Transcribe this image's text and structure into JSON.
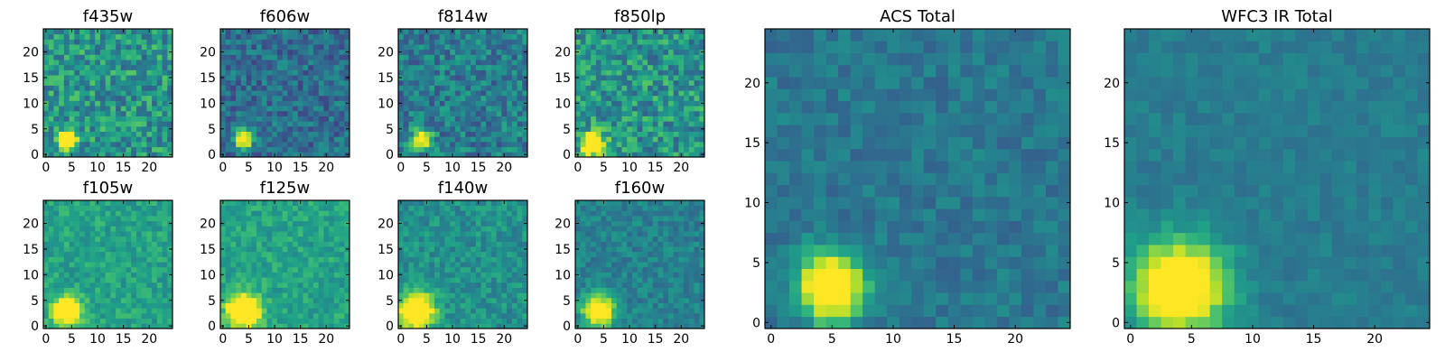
{
  "chart_data": [
    {
      "id": "f435w",
      "type": "heatmap",
      "title": "f435w",
      "xticks": [
        "0",
        "5",
        "10",
        "15",
        "20"
      ],
      "yticks": [
        "0",
        "5",
        "10",
        "15",
        "20"
      ],
      "xlim": [
        -0.5,
        24.5
      ],
      "ylim": [
        -0.5,
        24.5
      ],
      "grid": false,
      "colormap": "viridis",
      "source_peak": [
        4,
        3
      ],
      "source_sigma": 1.2,
      "noise": 0.42,
      "base": 0.52
    },
    {
      "id": "f606w",
      "type": "heatmap",
      "title": "f606w",
      "xticks": [
        "0",
        "5",
        "10",
        "15",
        "20"
      ],
      "yticks": [
        "0",
        "5",
        "10",
        "15",
        "20"
      ],
      "xlim": [
        -0.5,
        24.5
      ],
      "ylim": [
        -0.5,
        24.5
      ],
      "grid": false,
      "colormap": "viridis",
      "source_peak": [
        4,
        3
      ],
      "source_sigma": 1.2,
      "noise": 0.32,
      "base": 0.36
    },
    {
      "id": "f814w",
      "type": "heatmap",
      "title": "f814w",
      "xticks": [
        "0",
        "5",
        "10",
        "15",
        "20"
      ],
      "yticks": [
        "0",
        "5",
        "10",
        "15",
        "20"
      ],
      "xlim": [
        -0.5,
        24.5
      ],
      "ylim": [
        -0.5,
        24.5
      ],
      "grid": false,
      "colormap": "viridis",
      "source_peak": [
        4,
        3
      ],
      "source_sigma": 1.2,
      "noise": 0.36,
      "base": 0.42
    },
    {
      "id": "f850lp",
      "type": "heatmap",
      "title": "f850lp",
      "xticks": [
        "0",
        "5",
        "10",
        "15",
        "20"
      ],
      "yticks": [
        "0",
        "5",
        "10",
        "15",
        "20"
      ],
      "xlim": [
        -0.5,
        24.5
      ],
      "ylim": [
        -0.5,
        24.5
      ],
      "grid": false,
      "colormap": "viridis",
      "source_peak": [
        3,
        2
      ],
      "source_sigma": 1.5,
      "noise": 0.42,
      "base": 0.52
    },
    {
      "id": "f105w",
      "type": "heatmap",
      "title": "f105w",
      "xticks": [
        "0",
        "5",
        "10",
        "15",
        "20"
      ],
      "yticks": [
        "0",
        "5",
        "10",
        "15",
        "20"
      ],
      "xlim": [
        -0.5,
        24.5
      ],
      "ylim": [
        -0.5,
        24.5
      ],
      "grid": false,
      "colormap": "viridis",
      "source_peak": [
        4,
        3
      ],
      "source_sigma": 1.8,
      "noise": 0.22,
      "base": 0.58
    },
    {
      "id": "f125w",
      "type": "heatmap",
      "title": "f125w",
      "xticks": [
        "0",
        "5",
        "10",
        "15",
        "20"
      ],
      "yticks": [
        "0",
        "5",
        "10",
        "15",
        "20"
      ],
      "xlim": [
        -0.5,
        24.5
      ],
      "ylim": [
        -0.5,
        24.5
      ],
      "grid": false,
      "colormap": "viridis",
      "source_peak": [
        4,
        3
      ],
      "source_sigma": 2.2,
      "noise": 0.22,
      "base": 0.58
    },
    {
      "id": "f140w",
      "type": "heatmap",
      "title": "f140w",
      "xticks": [
        "0",
        "5",
        "10",
        "15",
        "20"
      ],
      "yticks": [
        "0",
        "5",
        "10",
        "15",
        "20"
      ],
      "xlim": [
        -0.5,
        24.5
      ],
      "ylim": [
        -0.5,
        24.5
      ],
      "grid": false,
      "colormap": "viridis",
      "source_peak": [
        3,
        3
      ],
      "source_sigma": 2.4,
      "noise": 0.24,
      "base": 0.5
    },
    {
      "id": "f160w",
      "type": "heatmap",
      "title": "f160w",
      "xticks": [
        "0",
        "5",
        "10",
        "15",
        "20"
      ],
      "yticks": [
        "0",
        "5",
        "10",
        "15",
        "20"
      ],
      "xlim": [
        -0.5,
        24.5
      ],
      "ylim": [
        -0.5,
        24.5
      ],
      "grid": false,
      "colormap": "viridis",
      "source_peak": [
        4,
        3
      ],
      "source_sigma": 2.0,
      "noise": 0.22,
      "base": 0.44
    },
    {
      "id": "acs_total",
      "type": "heatmap",
      "title": "ACS Total",
      "xticks": [
        "0",
        "5",
        "10",
        "15",
        "20"
      ],
      "yticks": [
        "0",
        "5",
        "10",
        "15",
        "20"
      ],
      "xlim": [
        -0.5,
        24.5
      ],
      "ylim": [
        -0.5,
        24.5
      ],
      "grid": false,
      "colormap": "viridis",
      "source_peak": [
        5,
        3
      ],
      "source_sigma": 1.9,
      "noise": 0.18,
      "base": 0.4
    },
    {
      "id": "wfc3_total",
      "type": "heatmap",
      "title": "WFC3 IR Total",
      "xticks": [
        "0",
        "5",
        "10",
        "15",
        "20"
      ],
      "yticks": [
        "0",
        "5",
        "10",
        "15",
        "20"
      ],
      "xlim": [
        -0.5,
        24.5
      ],
      "ylim": [
        -0.5,
        24.5
      ],
      "grid": false,
      "colormap": "viridis",
      "source_peak": [
        4,
        3
      ],
      "source_sigma": 2.6,
      "noise": 0.12,
      "base": 0.42
    }
  ]
}
